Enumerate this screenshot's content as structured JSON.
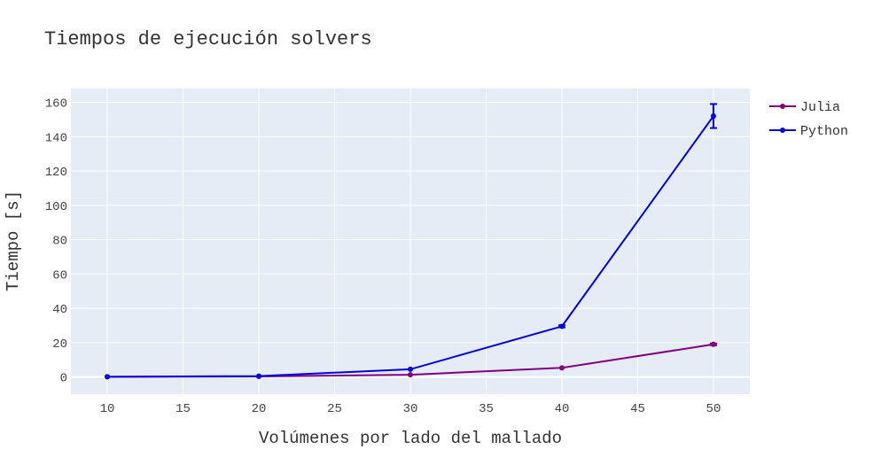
{
  "chart_data": {
    "type": "line",
    "title": "Tiempos de ejecución solvers",
    "xlabel": "Volúmenes por lado del mallado",
    "ylabel": "Tiempo [s]",
    "xlim": [
      7.6,
      52.4
    ],
    "ylim": [
      -10,
      168
    ],
    "x_ticks": [
      10,
      15,
      20,
      25,
      30,
      35,
      40,
      45,
      50
    ],
    "y_ticks": [
      0,
      20,
      40,
      60,
      80,
      100,
      120,
      140,
      160
    ],
    "grid": true,
    "legend_position": "top-right",
    "background": "#e5ecf6",
    "series": [
      {
        "name": "Julia",
        "color": "#800080",
        "x": [
          10,
          20,
          30,
          40,
          50
        ],
        "y": [
          0.1,
          0.3,
          1.3,
          5.3,
          19.0
        ],
        "error": [
          0,
          0,
          0,
          0,
          0.5
        ]
      },
      {
        "name": "Python",
        "color": "#0000dd",
        "x": [
          10,
          20,
          30,
          40,
          50
        ],
        "y": [
          0.1,
          0.5,
          4.5,
          29.5,
          152.0
        ],
        "error": [
          0,
          0,
          0,
          0.6,
          7.0
        ]
      }
    ]
  }
}
